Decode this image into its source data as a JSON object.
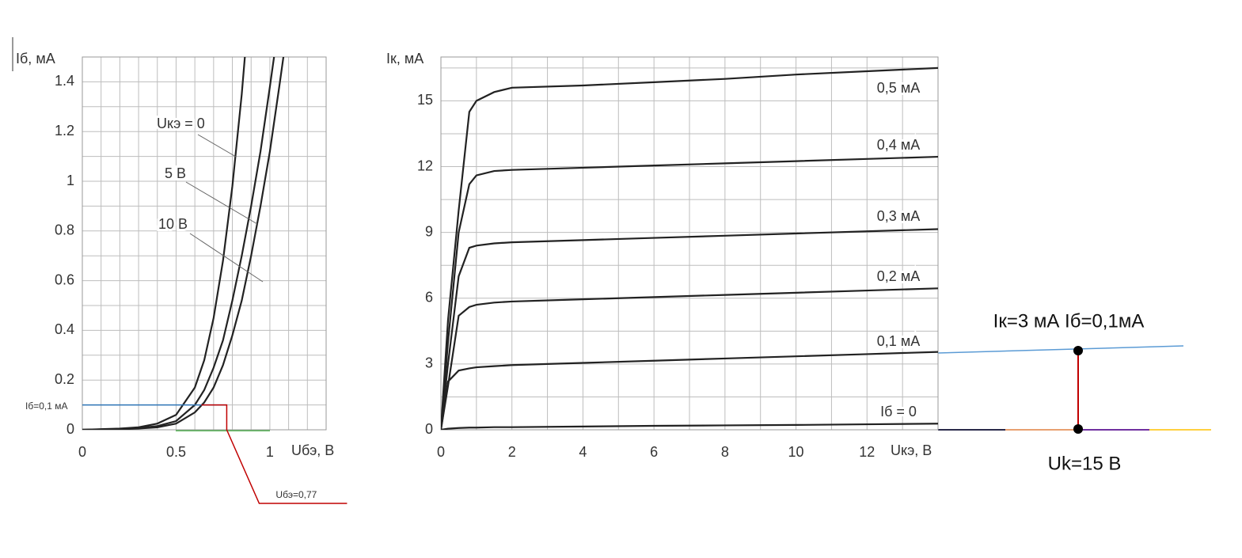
{
  "chart_data": [
    {
      "type": "line",
      "ylabel": "Iб, мА",
      "xlabel": "Uбэ, В",
      "xlim": [
        0,
        1.3
      ],
      "ylim": [
        0,
        1.5
      ],
      "xticks": [
        0,
        0.5,
        1
      ],
      "yticks": [
        0,
        0.2,
        0.4,
        0.6,
        0.8,
        1,
        1.2,
        1.4
      ],
      "xgrid": [
        0,
        0.1,
        0.2,
        0.3,
        0.4,
        0.5,
        0.6,
        0.7,
        0.8,
        0.9,
        1,
        1.1,
        1.2,
        1.3
      ],
      "ygrid": [
        0,
        0.1,
        0.2,
        0.3,
        0.4,
        0.5,
        0.6,
        0.7,
        0.8,
        0.9,
        1,
        1.1,
        1.2,
        1.3,
        1.4,
        1.5
      ],
      "x": [
        0,
        0.2,
        0.3,
        0.4,
        0.5,
        0.6,
        0.65,
        0.7,
        0.75,
        0.8,
        0.85,
        0.9,
        0.95,
        1.0,
        1.05,
        1.1
      ],
      "series": [
        {
          "name": "Uкэ = 0",
          "color": "#222222",
          "values": [
            0,
            0.005,
            0.01,
            0.025,
            0.06,
            0.17,
            0.28,
            0.45,
            0.68,
            0.98,
            1.35,
            1.8,
            null,
            null,
            null,
            null
          ]
        },
        {
          "name": "5 В",
          "color": "#222222",
          "values": [
            0,
            0.003,
            0.007,
            0.015,
            0.035,
            0.1,
            0.16,
            0.25,
            0.36,
            0.52,
            0.7,
            0.9,
            1.12,
            1.38,
            1.65,
            null
          ]
        },
        {
          "name": "10 В",
          "color": "#222222",
          "values": [
            0,
            0.002,
            0.005,
            0.01,
            0.025,
            0.07,
            0.11,
            0.17,
            0.26,
            0.38,
            0.52,
            0.7,
            0.9,
            1.12,
            1.38,
            1.65
          ]
        }
      ],
      "annotations": [
        {
          "text": "Iб=0,1 мА",
          "y": 0.1
        },
        {
          "text": "Uбэ=0,77",
          "x": 0.77
        }
      ]
    },
    {
      "type": "line",
      "ylabel": "Iк, мА",
      "xlabel": "Uкэ, В",
      "xlim": [
        0,
        14
      ],
      "ylim": [
        0,
        17
      ],
      "xticks": [
        0,
        2,
        4,
        6,
        8,
        10,
        12
      ],
      "yticks": [
        0,
        3,
        6,
        9,
        12,
        15
      ],
      "xgrid": [
        0,
        1,
        2,
        3,
        4,
        5,
        6,
        7,
        8,
        9,
        10,
        11,
        12,
        13,
        14
      ],
      "ygrid": [
        0,
        1.5,
        3,
        4.5,
        6,
        7.5,
        9,
        10.5,
        12,
        13.5,
        15,
        16.5
      ],
      "x": [
        0,
        0.2,
        0.5,
        0.8,
        1,
        1.5,
        2,
        4,
        6,
        8,
        10,
        12,
        14
      ],
      "series": [
        {
          "name": "0,5 мА",
          "color": "#222222",
          "values": [
            0,
            5,
            10,
            14.5,
            15,
            15.4,
            15.6,
            15.7,
            15.85,
            16.0,
            16.2,
            16.35,
            16.5
          ]
        },
        {
          "name": "0,4 мА",
          "color": "#222222",
          "values": [
            0,
            4,
            9,
            11.2,
            11.6,
            11.8,
            11.85,
            11.95,
            12.05,
            12.15,
            12.25,
            12.35,
            12.45
          ]
        },
        {
          "name": "0,3 мА",
          "color": "#222222",
          "values": [
            0,
            3,
            7,
            8.3,
            8.4,
            8.5,
            8.55,
            8.65,
            8.75,
            8.85,
            8.95,
            9.05,
            9.15
          ]
        },
        {
          "name": "0,2 мА",
          "color": "#222222",
          "values": [
            0,
            2,
            5.2,
            5.6,
            5.7,
            5.8,
            5.85,
            5.95,
            6.05,
            6.15,
            6.25,
            6.35,
            6.45
          ]
        },
        {
          "name": "0,1 мА",
          "color": "#222222",
          "values": [
            0,
            2.2,
            2.7,
            2.8,
            2.85,
            2.9,
            2.95,
            3.05,
            3.15,
            3.25,
            3.35,
            3.45,
            3.55
          ]
        },
        {
          "name": "Iб = 0",
          "color": "#222222",
          "values": [
            0,
            0.05,
            0.08,
            0.1,
            0.1,
            0.12,
            0.12,
            0.15,
            0.18,
            0.2,
            0.22,
            0.25,
            0.28
          ]
        }
      ],
      "annotations": [
        {
          "text": "Iк=3 мА Iб=0,1мА"
        },
        {
          "text": "Uk=15 В"
        }
      ]
    }
  ]
}
